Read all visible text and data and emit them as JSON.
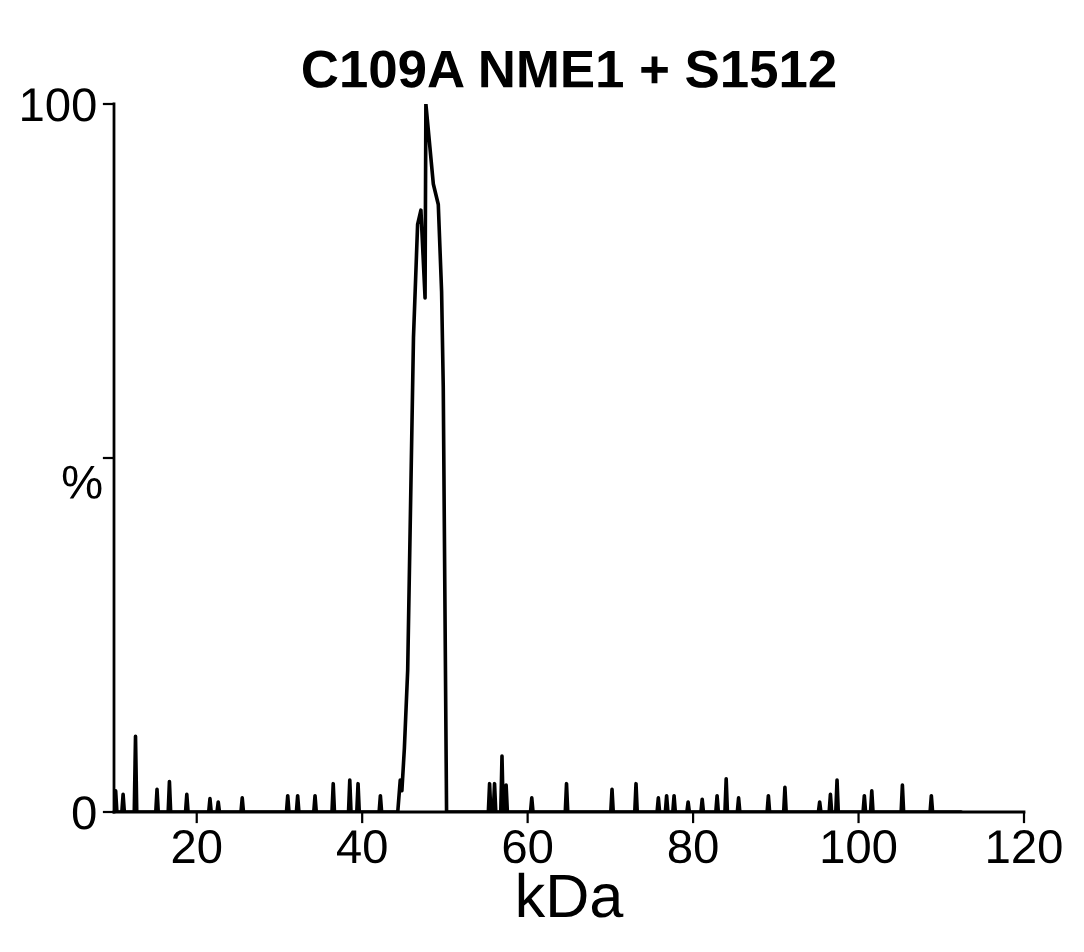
{
  "chart_data": {
    "type": "line",
    "title": "C109A NME1 + S1512",
    "xlabel": "kDa",
    "ylabel": "%",
    "xlim": [
      10,
      120
    ],
    "xticks": [
      20,
      40,
      60,
      80,
      100,
      120
    ],
    "ylim": [
      0,
      100
    ],
    "yticks": [
      0,
      {
        "value": 50,
        "label": null
      },
      100
    ],
    "grid": false,
    "legend": false,
    "marker": "none",
    "line_style": "solid",
    "series": [
      {
        "color": "#000000",
        "x": [
          10,
          10.05,
          10.2,
          10.35,
          10.95,
          11.1,
          11.25,
          12.45,
          12.6,
          12.75,
          15.05,
          15.2,
          15.35,
          16.55,
          16.7,
          16.85,
          18.65,
          18.8,
          18.95,
          21.45,
          21.6,
          21.75,
          22.45,
          22.6,
          22.75,
          25.35,
          25.5,
          25.65,
          30.85,
          31,
          31.15,
          32.05,
          32.2,
          32.35,
          34.15,
          34.3,
          34.45,
          36.35,
          36.5,
          36.65,
          38.35,
          38.5,
          38.65,
          39.35,
          39.5,
          39.65,
          42.05,
          42.2,
          42.35,
          44.3,
          44.6,
          44.8,
          45.1,
          45.5,
          46.2,
          46.7,
          47.1,
          47.6,
          47.7,
          48.6,
          49.2,
          49.6,
          49.8,
          50.2,
          55.25,
          55.4,
          55.55,
          55.85,
          56,
          56.15,
          56.75,
          56.9,
          57.05,
          57.25,
          57.4,
          57.55,
          60.35,
          60.5,
          60.65,
          64.55,
          64.7,
          64.85,
          70.05,
          70.2,
          70.35,
          72.95,
          73.1,
          73.25,
          75.65,
          75.8,
          75.95,
          76.65,
          76.8,
          76.95,
          77.55,
          77.7,
          77.85,
          79.25,
          79.4,
          79.55,
          80.95,
          81.1,
          81.25,
          82.75,
          82.9,
          83.05,
          83.85,
          84,
          84.15,
          85.35,
          85.5,
          85.65,
          88.95,
          89.1,
          89.25,
          90.95,
          91.1,
          91.25,
          95.15,
          95.3,
          95.45,
          96.45,
          96.6,
          96.75,
          97.25,
          97.4,
          97.55,
          100.55,
          100.7,
          100.85,
          101.45,
          101.6,
          101.75,
          105.15,
          105.3,
          105.45,
          108.65,
          108.8,
          108.95,
          112.4
        ],
        "values": [
          0,
          0,
          3,
          0,
          0,
          2.5,
          0,
          0,
          10.7,
          0,
          0,
          3.2,
          0,
          0,
          4.3,
          0,
          0,
          2.5,
          0,
          0,
          1.9,
          0,
          0,
          1.4,
          0,
          0,
          2,
          0,
          0,
          2.3,
          0,
          0,
          2.3,
          0,
          0,
          2.3,
          0,
          0,
          4,
          0,
          0,
          4.5,
          0,
          0,
          4,
          0,
          0,
          2.3,
          0,
          0,
          4.5,
          3,
          9,
          20,
          67,
          83,
          85,
          72.6,
          100,
          88.7,
          85.8,
          73.5,
          60,
          0,
          0,
          4,
          0,
          0,
          4,
          0,
          0,
          7.9,
          0,
          0,
          3.8,
          0,
          0,
          2,
          0,
          0,
          4,
          0,
          0,
          3.2,
          0,
          0,
          4,
          0,
          0,
          2,
          0,
          0,
          2.3,
          0,
          0,
          2.3,
          0,
          0,
          1.4,
          0,
          0,
          1.8,
          0,
          0,
          2.3,
          0,
          0,
          4.7,
          0,
          0,
          2,
          0,
          0,
          2.3,
          0,
          0,
          3.5,
          0,
          0,
          1.4,
          0,
          0,
          2.5,
          0,
          0,
          4.5,
          0,
          0,
          2.3,
          0,
          0,
          3,
          0,
          0,
          3.8,
          0,
          0,
          2.3,
          0,
          0
        ]
      }
    ]
  }
}
